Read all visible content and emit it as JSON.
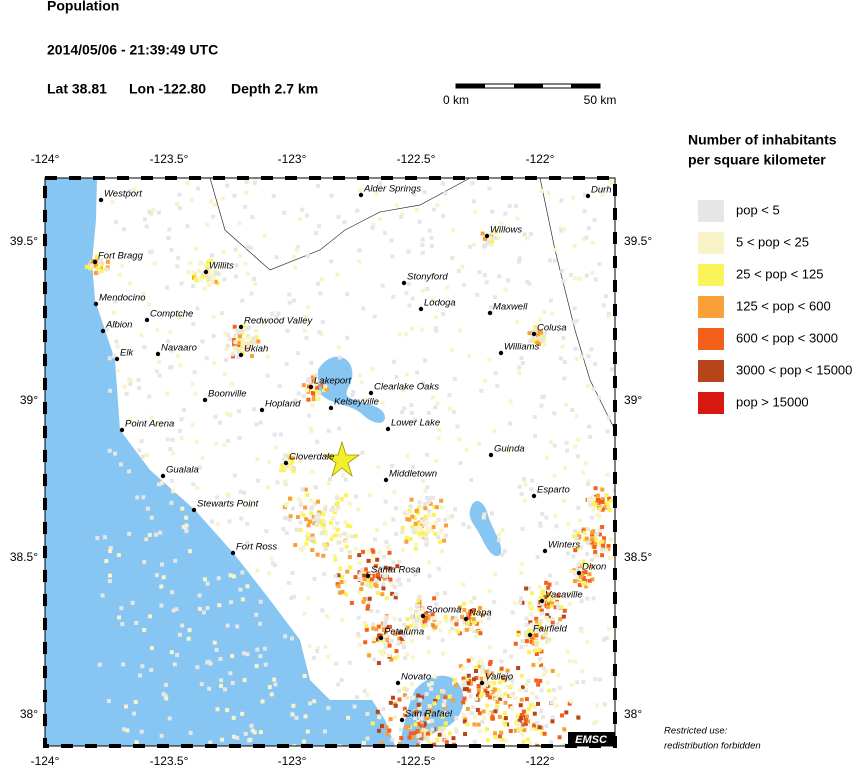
{
  "header": {
    "title": "Population",
    "datetime": "2014/05/06 - 21:39:49 UTC",
    "lat": "Lat 38.81",
    "lon": "Lon -122.80",
    "depth": "Depth  2.7 km"
  },
  "scale_bar": {
    "start": "0 km",
    "end": "50 km"
  },
  "legend": {
    "title_lines": [
      "Number of inhabitants",
      "per square kilometer"
    ],
    "items": [
      {
        "label": "pop < 5",
        "color": "#e6e6e6"
      },
      {
        "label": "5 < pop < 25",
        "color": "#f8f4c8"
      },
      {
        "label": "25 < pop < 125",
        "color": "#fbf35a"
      },
      {
        "label": "125 < pop < 600",
        "color": "#f9a038"
      },
      {
        "label": "600 < pop < 3000",
        "color": "#f4601c"
      },
      {
        "label": "3000 < pop < 15000",
        "color": "#b8441a"
      },
      {
        "label": "pop > 15000",
        "color": "#d8180f"
      }
    ]
  },
  "map": {
    "lon_ticks": [
      "-124°",
      "-123.5°",
      "-123°",
      "-122.5°",
      "-122°"
    ],
    "lat_ticks": [
      "39.5°",
      "39°",
      "38.5°",
      "38°"
    ],
    "cities": [
      "Westport",
      "Fort Bragg",
      "Willits",
      "Mendocino",
      "Comptche",
      "Albion",
      "Redwood Valley",
      "Elk",
      "Navaaro",
      "Ukiah",
      "Stonyford",
      "Lodoga",
      "Willows",
      "Maxwell",
      "Colusa",
      "Williams",
      "Alder Springs",
      "Lakeport",
      "Clearlake Oaks",
      "Kelseyville",
      "Hopland",
      "Boonville",
      "Lower Lake",
      "Point Arena",
      "Guinda",
      "Cloverdale",
      "Middletown",
      "Gualala",
      "Esparto",
      "Stewarts Point",
      "Winters",
      "Fort Ross",
      "Dixon",
      "Santa Rosa",
      "Vacaville",
      "Sonoma",
      "Napa",
      "Fairfield",
      "Petaluma",
      "Vallejo",
      "Novato",
      "San Rafael",
      "Durh"
    ],
    "credit": "EMSC"
  },
  "note": [
    "Restricted use:",
    "redistribution forbidden"
  ]
}
